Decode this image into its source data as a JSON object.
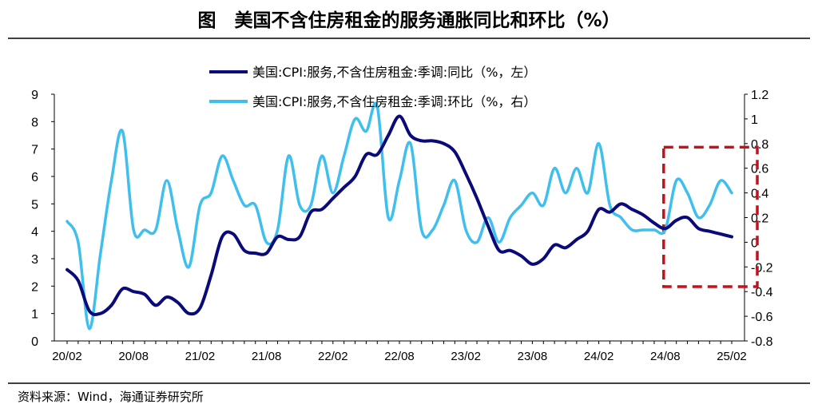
{
  "page": {
    "title": "图　美国不含住房租金的服务通胀同比和环比（%）",
    "source": "资料来源：Wind，海通证券研究所"
  },
  "chart_data": {
    "type": "line",
    "x": [
      "20/02",
      "20/03",
      "20/04",
      "20/05",
      "20/06",
      "20/07",
      "20/08",
      "20/09",
      "20/10",
      "20/11",
      "20/12",
      "21/01",
      "21/02",
      "21/03",
      "21/04",
      "21/05",
      "21/06",
      "21/07",
      "21/08",
      "21/09",
      "21/10",
      "21/11",
      "21/12",
      "22/01",
      "22/02",
      "22/03",
      "22/04",
      "22/05",
      "22/06",
      "22/07",
      "22/08",
      "22/09",
      "22/10",
      "22/11",
      "22/12",
      "23/01",
      "23/02",
      "23/03",
      "23/04",
      "23/05",
      "23/06",
      "23/07",
      "23/08",
      "23/09",
      "23/10",
      "23/11",
      "23/12",
      "24/01",
      "24/02",
      "24/03",
      "24/04",
      "24/05",
      "24/06",
      "24/07",
      "24/08",
      "24/09",
      "24/10",
      "24/11",
      "24/12",
      "25/01",
      "25/02"
    ],
    "x_ticks": [
      "20/02",
      "20/08",
      "21/02",
      "21/08",
      "22/02",
      "22/08",
      "23/02",
      "23/08",
      "24/02",
      "24/08",
      "25/02"
    ],
    "series": [
      {
        "name": "美国:CPI:服务,不含住房租金:季调:同比（%，左）",
        "axis": "left",
        "color": "#0a0a78",
        "values": [
          2.6,
          2.2,
          1.1,
          1.0,
          1.3,
          1.9,
          1.8,
          1.7,
          1.3,
          1.6,
          1.4,
          1.0,
          1.2,
          2.4,
          3.8,
          3.9,
          3.3,
          3.2,
          3.2,
          3.8,
          3.7,
          3.8,
          4.7,
          4.8,
          5.2,
          5.6,
          6.0,
          6.8,
          6.8,
          7.5,
          8.2,
          7.5,
          7.3,
          7.3,
          7.2,
          6.9,
          6.1,
          5.2,
          4.2,
          3.3,
          3.3,
          3.1,
          2.8,
          3.0,
          3.5,
          3.4,
          3.7,
          4.0,
          4.8,
          4.7,
          5.0,
          4.8,
          4.6,
          4.3,
          4.1,
          4.4,
          4.5,
          4.1,
          4.0,
          3.9,
          3.8
        ]
      },
      {
        "name": "美国:CPI:服务,不含住房租金:季调:环比（%，右）",
        "axis": "right",
        "color": "#3fbfee",
        "values": [
          0.17,
          0.0,
          -0.7,
          -0.1,
          0.5,
          0.9,
          0.1,
          0.1,
          0.1,
          0.5,
          0.1,
          -0.2,
          0.3,
          0.4,
          0.7,
          0.5,
          0.3,
          0.3,
          0.0,
          0.1,
          0.7,
          0.3,
          0.3,
          0.7,
          0.4,
          0.7,
          1.0,
          0.9,
          1.1,
          0.2,
          0.5,
          0.8,
          0.1,
          0.1,
          0.3,
          0.5,
          0.1,
          0.0,
          0.2,
          0.0,
          0.2,
          0.3,
          0.4,
          0.3,
          0.6,
          0.4,
          0.6,
          0.4,
          0.8,
          0.3,
          0.2,
          0.1,
          0.1,
          0.1,
          0.1,
          0.5,
          0.4,
          0.2,
          0.3,
          0.5,
          0.4
        ]
      }
    ],
    "left_axis": {
      "ylim": [
        0,
        9
      ],
      "ticks": [
        "0",
        "1",
        "2",
        "3",
        "4",
        "5",
        "6",
        "7",
        "8",
        "9"
      ]
    },
    "right_axis": {
      "ylim": [
        -0.8,
        1.2
      ],
      "ticks": [
        "-0.8",
        "-0.6",
        "-0.4",
        "-0.2",
        "0",
        "0.2",
        "0.4",
        "0.6",
        "0.8",
        "1",
        "1.2"
      ]
    },
    "grid": false,
    "legend_placement": "top-center",
    "annotation": {
      "type": "dashed-box",
      "color": "#c0141c",
      "x_range": [
        "24/08",
        "25/02"
      ],
      "right_axis_range": [
        -0.36,
        0.77
      ]
    }
  }
}
